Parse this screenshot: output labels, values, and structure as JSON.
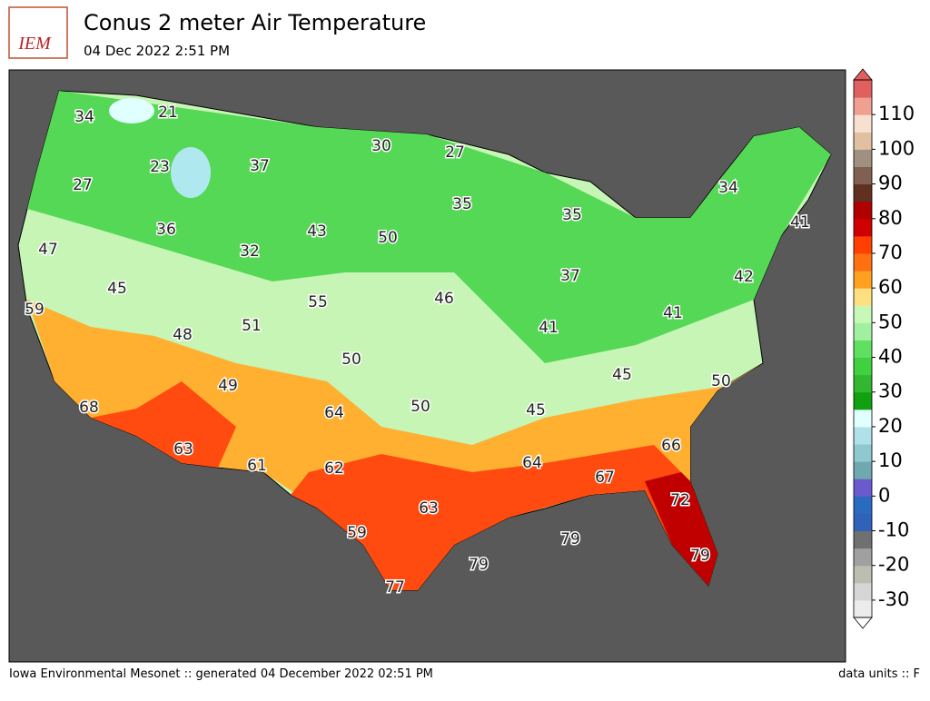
{
  "header": {
    "logo": "IEM",
    "title": "Conus 2 meter Air Temperature",
    "subtitle": "04 Dec 2022 2:51 PM"
  },
  "footer": {
    "left": "Iowa Environmental Mesonet :: generated 04 December 2022 02:51 PM",
    "right": "data units :: F"
  },
  "colorbar": {
    "lim": [
      -35,
      120
    ],
    "ticks": [
      -30,
      -20,
      -10,
      0,
      10,
      20,
      30,
      40,
      50,
      60,
      70,
      80,
      90,
      100,
      110
    ],
    "colors": [
      "#ececec",
      "#d6d6d6",
      "#bdbdb0",
      "#a0a0a0",
      "#707070",
      "#2f62b8",
      "#2a6ac0",
      "#6a5acd",
      "#70a8b0",
      "#90c8d0",
      "#b0e0e8",
      "#e0ffff",
      "#10a010",
      "#30b830",
      "#40d040",
      "#60e060",
      "#a0f0a0",
      "#c8f8b8",
      "#ffe080",
      "#ffa020",
      "#ff7010",
      "#ff4000",
      "#d00000",
      "#b00000",
      "#603020",
      "#806050",
      "#a09080",
      "#e0c0a0",
      "#f8e0d0",
      "#f0a090",
      "#e06060"
    ]
  },
  "map": {
    "labels": [
      34,
      21,
      30,
      27,
      23,
      37,
      27,
      34,
      35,
      35,
      36,
      41,
      43,
      50,
      47,
      32,
      37,
      42,
      45,
      46,
      55,
      59,
      41,
      51,
      41,
      48,
      50,
      45,
      50,
      49,
      50,
      68,
      45,
      64,
      66,
      63,
      61,
      62,
      64,
      67,
      72,
      63,
      59,
      79,
      79,
      79,
      77
    ]
  }
}
